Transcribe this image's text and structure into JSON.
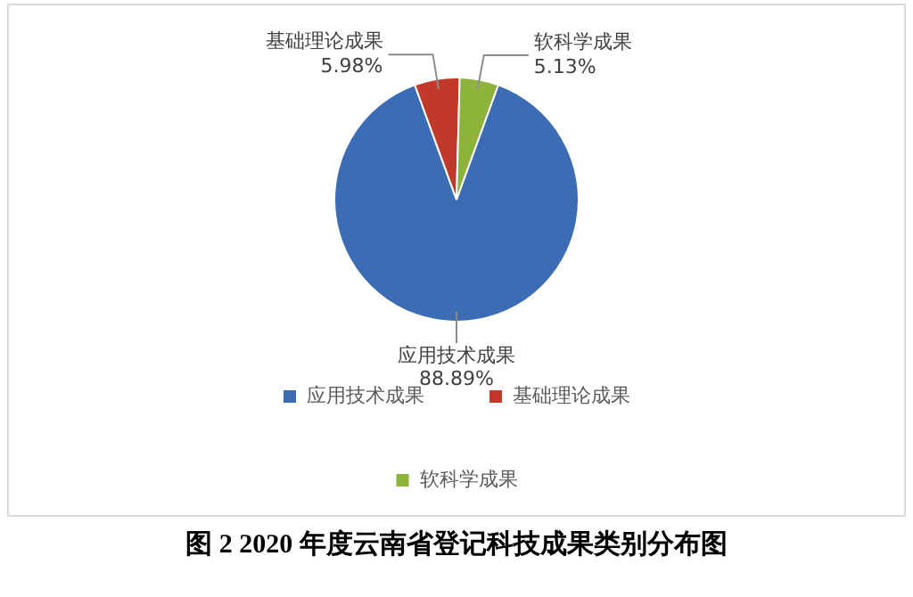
{
  "chart_data": {
    "type": "pie",
    "title": "图 2 2020 年度云南省登记科技成果类别分布图",
    "categories": [
      "应用技术成果",
      "基础理论成果",
      "软科学成果"
    ],
    "values": [
      88.89,
      5.98,
      5.13
    ],
    "colors": [
      "#3b6cb4",
      "#c0392b",
      "#8db33a"
    ],
    "value_labels": [
      "88.89%",
      "5.98%",
      "5.13%"
    ],
    "legend": "bottom"
  }
}
